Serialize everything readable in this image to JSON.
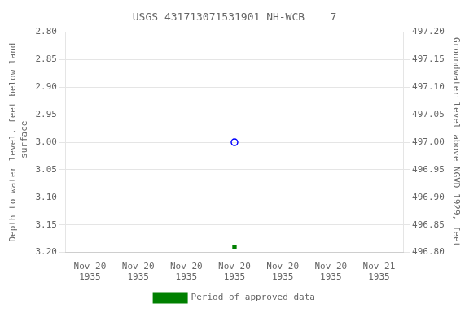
{
  "chart_data": {
    "type": "scatter",
    "title": "USGS 431713071531901 NH-WCB    7",
    "categories": [
      "Nov 20\n1935",
      "Nov 20\n1935",
      "Nov 20\n1935",
      "Nov 20\n1935",
      "Nov 20\n1935",
      "Nov 20\n1935",
      "Nov 21\n1935"
    ],
    "y_label": "Depth to water level, feet below land\n surface",
    "y2_label": "Groundwater level above NGVD 1929, feet",
    "ylim": [
      3.2,
      2.8
    ],
    "yticks": [
      {
        "value": 2.8,
        "label": "2.80"
      },
      2.85,
      {
        "value": 2.9,
        "label": "2.90"
      },
      2.95,
      {
        "value": 3.0,
        "label": "3.00"
      },
      3.05,
      {
        "value": 3.1,
        "label": "3.10"
      },
      3.15,
      {
        "value": 3.2,
        "label": "3.20"
      }
    ],
    "y2lim": [
      496.8,
      497.2
    ],
    "y2ticks": [
      {
        "value": 496.8,
        "label": "496.80"
      },
      496.85,
      {
        "value": 496.9,
        "label": "496.90"
      },
      496.95,
      {
        "value": 497.0,
        "label": "497.00"
      },
      497.05,
      {
        "value": 497.1,
        "label": "497.10"
      },
      497.15,
      {
        "value": 497.2,
        "label": "497.20"
      }
    ],
    "series": [
      {
        "values": [
          null,
          null,
          null,
          3.0,
          null,
          null,
          null
        ],
        "color": "#0000ff",
        "marker": "open_circle"
      },
      {
        "name": "Period of approved data",
        "values": [
          null,
          null,
          null,
          3.19,
          null,
          null,
          null
        ],
        "color": "#008000",
        "marker": "square"
      }
    ],
    "grid": true,
    "legend": "bottom"
  }
}
